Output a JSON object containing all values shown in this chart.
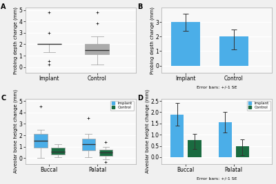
{
  "panel_A": {
    "label": "A",
    "ylabel": "Probing depth change (mm)",
    "categories": [
      "Implant",
      "Control"
    ],
    "boxplot": {
      "Implant": {
        "median": 2.0,
        "q1": 2.0,
        "q3": 2.0,
        "whisker_low": 1.3,
        "whisker_high": 2.0,
        "fliers": [
          0.2,
          0.5,
          3.0,
          4.8
        ]
      },
      "Control": {
        "median": 1.5,
        "q1": 1.1,
        "q3": 2.0,
        "whisker_low": 0.2,
        "whisker_high": 2.7,
        "fliers": [
          3.8,
          4.8
        ]
      }
    },
    "ylim": [
      -0.5,
      5.2
    ],
    "yticks": [
      0.0,
      1.0,
      2.0,
      3.0,
      4.0,
      5.0
    ],
    "box_color": "#4baee8"
  },
  "panel_B": {
    "label": "B",
    "ylabel": "Probing depth change (mm)",
    "xlabel": "Error bars: +/-1 SE",
    "categories": [
      "Implant",
      "Control"
    ],
    "means": [
      3.0,
      2.0
    ],
    "errors_up": [
      0.6,
      0.5
    ],
    "errors_down": [
      0.6,
      0.9
    ],
    "ylim": [
      -0.5,
      4.0
    ],
    "yticks": [
      0.0,
      1.0,
      2.0,
      3.0
    ],
    "bar_color": "#4baee8"
  },
  "panel_C": {
    "label": "C",
    "ylabel": "Alveolar bone height change (mm)",
    "categories": [
      "Buccal",
      "Palatal"
    ],
    "legend_labels": [
      "Implant",
      "Control"
    ],
    "boxplot": {
      "Buccal_Implant": {
        "median": 1.5,
        "q1": 0.9,
        "q3": 2.1,
        "whisker_low": 0.05,
        "whisker_high": 2.5,
        "fliers": [
          4.5
        ]
      },
      "Buccal_Control": {
        "median": 0.55,
        "q1": 0.3,
        "q3": 0.95,
        "whisker_low": 0.1,
        "whisker_high": 1.25,
        "fliers": []
      },
      "Palatal_Implant": {
        "median": 1.2,
        "q1": 0.7,
        "q3": 1.7,
        "whisker_low": 0.1,
        "whisker_high": 2.1,
        "fliers": [
          3.5
        ]
      },
      "Palatal_Control": {
        "median": 0.5,
        "q1": 0.2,
        "q3": 0.75,
        "whisker_low": -0.1,
        "whisker_high": 1.0,
        "fliers": [
          1.4,
          -0.35
        ]
      }
    },
    "ylim": [
      -0.5,
      5.2
    ],
    "yticks": [
      0.0,
      1.0,
      2.0,
      3.0,
      4.0,
      5.0
    ],
    "implant_color": "#4baee8",
    "control_color": "#1a6b40"
  },
  "panel_D": {
    "label": "D",
    "ylabel": "Alveolar bone height change (mm)",
    "xlabel": "Error bars: +/-1 SE",
    "categories": [
      "Buccal",
      "Palatal"
    ],
    "legend_labels": [
      "Implant",
      "Control"
    ],
    "means_implant": [
      1.9,
      1.55
    ],
    "means_control": [
      0.75,
      0.5
    ],
    "errors_up_implant": [
      0.5,
      0.45
    ],
    "errors_down_implant": [
      0.5,
      0.45
    ],
    "errors_up_control": [
      0.3,
      0.3
    ],
    "errors_down_control": [
      0.4,
      0.4
    ],
    "ylim": [
      -0.3,
      2.6
    ],
    "yticks": [
      0.0,
      0.5,
      1.0,
      1.5,
      2.0,
      2.5
    ],
    "implant_color": "#4baee8",
    "control_color": "#1a6b40"
  },
  "background_color": "#f0f0f0",
  "plot_bg": "#f8f8f8",
  "grid_color": "#ffffff",
  "font_size": 5.5
}
